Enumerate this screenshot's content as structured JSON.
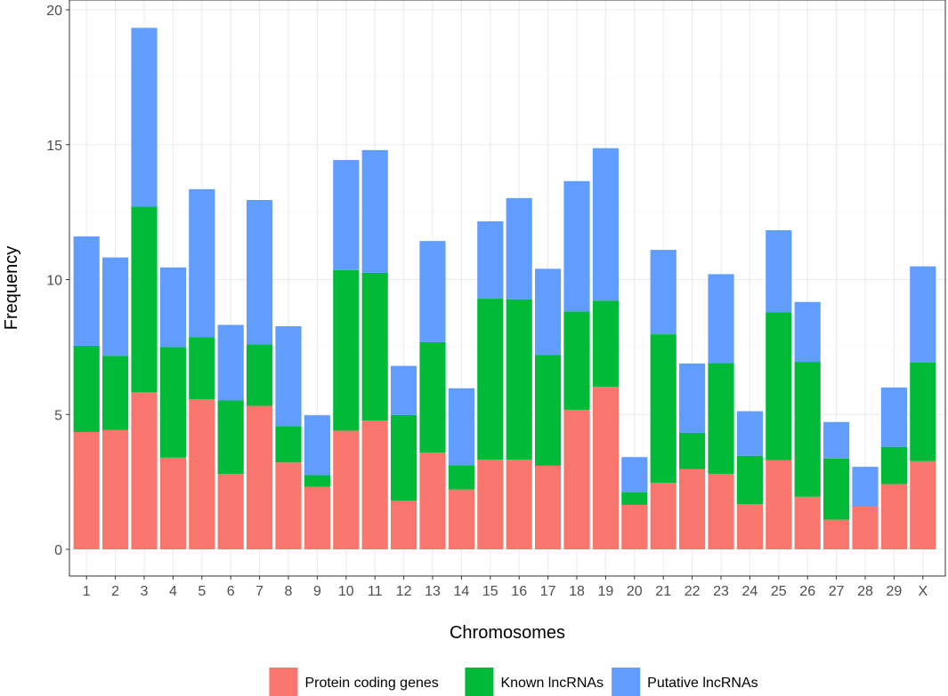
{
  "chart_data": {
    "type": "bar",
    "stacked": true,
    "xlabel": "Chromosomes",
    "ylabel": "Frequency",
    "ylim": [
      0,
      20
    ],
    "yticks": [
      0,
      5,
      10,
      15,
      20
    ],
    "grid": true,
    "legend_position": "bottom",
    "categories": [
      "1",
      "2",
      "3",
      "4",
      "5",
      "6",
      "7",
      "8",
      "9",
      "10",
      "11",
      "12",
      "13",
      "14",
      "15",
      "16",
      "17",
      "18",
      "19",
      "20",
      "21",
      "22",
      "23",
      "24",
      "25",
      "26",
      "27",
      "28",
      "29",
      "X"
    ],
    "series": [
      {
        "name": "Protein coding genes",
        "color": "#F8766D",
        "values": [
          4.35,
          4.42,
          5.82,
          3.4,
          5.57,
          2.8,
          5.32,
          3.22,
          2.32,
          4.4,
          4.77,
          1.8,
          3.58,
          2.22,
          3.32,
          3.32,
          3.1,
          5.17,
          6.02,
          1.65,
          2.47,
          2.97,
          2.8,
          1.67,
          3.3,
          1.95,
          1.1,
          1.58,
          2.42,
          3.27
        ]
      },
      {
        "name": "Known lncRNAs",
        "color": "#00BA38",
        "values": [
          3.2,
          2.75,
          6.88,
          4.1,
          2.3,
          2.72,
          2.28,
          1.35,
          0.43,
          5.95,
          5.48,
          3.18,
          4.1,
          0.9,
          5.97,
          5.95,
          4.1,
          3.65,
          3.2,
          0.47,
          5.5,
          1.35,
          4.1,
          1.8,
          5.48,
          5.0,
          2.27,
          0.0,
          1.38,
          3.65
        ]
      },
      {
        "name": "Putative lncRNAs",
        "color": "#619CFF",
        "values": [
          4.05,
          3.65,
          6.63,
          2.95,
          5.48,
          2.8,
          5.35,
          3.7,
          2.22,
          4.08,
          4.55,
          1.82,
          3.75,
          2.85,
          2.87,
          3.75,
          3.2,
          4.83,
          5.65,
          1.3,
          3.13,
          2.57,
          3.3,
          1.65,
          3.05,
          2.22,
          1.35,
          1.48,
          2.2,
          3.57
        ]
      }
    ]
  }
}
